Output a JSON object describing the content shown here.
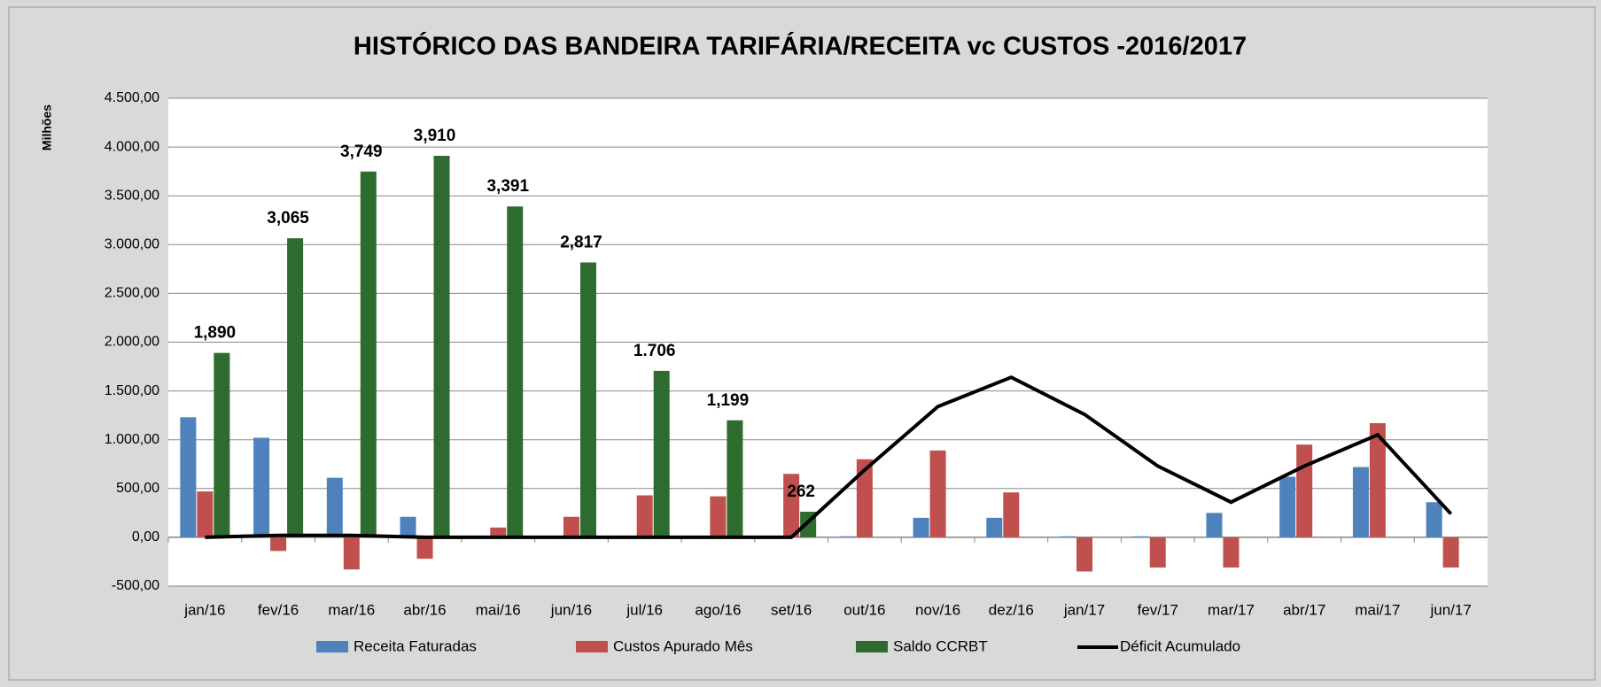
{
  "chart_data": {
    "type": "bar",
    "title": "HISTÓRICO DAS BANDEIRA TARIFÁRIA/RECEITA vc CUSTOS -2016/2017",
    "y_label": "Milhões",
    "categories": [
      "jan/16",
      "fev/16",
      "mar/16",
      "abr/16",
      "mai/16",
      "jun/16",
      "jul/16",
      "ago/16",
      "set/16",
      "out/16",
      "nov/16",
      "dez/16",
      "jan/17",
      "fev/17",
      "mar/17",
      "abr/17",
      "mai/17",
      "jun/17"
    ],
    "series": [
      {
        "name": "Receita Faturadas",
        "color": "#4f81bd",
        "type": "bar",
        "values": [
          1230,
          1020,
          610,
          210,
          0,
          0,
          0,
          0,
          0,
          10,
          200,
          200,
          10,
          10,
          250,
          620,
          720,
          360
        ]
      },
      {
        "name": "Custos Apurado Mês",
        "color": "#c0504d",
        "type": "bar",
        "values": [
          470,
          -140,
          -330,
          -220,
          100,
          210,
          430,
          420,
          650,
          800,
          890,
          460,
          -350,
          -310,
          -310,
          950,
          1170,
          -310
        ]
      },
      {
        "name": "Saldo CCRBT",
        "color": "#2e6b2e",
        "type": "bar",
        "values": [
          1890,
          3065,
          3749,
          3910,
          3391,
          2817,
          1706,
          1199,
          262,
          null,
          null,
          null,
          null,
          null,
          null,
          null,
          null,
          null
        ],
        "value_labels": [
          "1,890",
          "3,065",
          "3,749",
          "3,910",
          "3,391",
          "2,817",
          "1.706",
          "1,199",
          "262",
          null,
          null,
          null,
          null,
          null,
          null,
          null,
          null,
          null
        ]
      },
      {
        "name": "Déficit Acumulado",
        "color": "#000000",
        "type": "line",
        "values": [
          0,
          20,
          20,
          0,
          0,
          0,
          0,
          0,
          0,
          690,
          1340,
          1640,
          1260,
          730,
          360,
          730,
          1050,
          240
        ]
      }
    ],
    "ylim": [
      -500,
      4500
    ],
    "yticks": [
      {
        "value": -500,
        "label": "-500,00"
      },
      {
        "value": 0,
        "label": "0,00"
      },
      {
        "value": 500,
        "label": "500,00"
      },
      {
        "value": 1000,
        "label": "1.000,00"
      },
      {
        "value": 1500,
        "label": "1.500,00"
      },
      {
        "value": 2000,
        "label": "2.000,00"
      },
      {
        "value": 2500,
        "label": "2.500,00"
      },
      {
        "value": 3000,
        "label": "3.000,00"
      },
      {
        "value": 3500,
        "label": "3.500,00"
      },
      {
        "value": 4000,
        "label": "4.000,00"
      },
      {
        "value": 4500,
        "label": "4.500,00"
      }
    ],
    "grid": true,
    "legend": "bottom"
  }
}
